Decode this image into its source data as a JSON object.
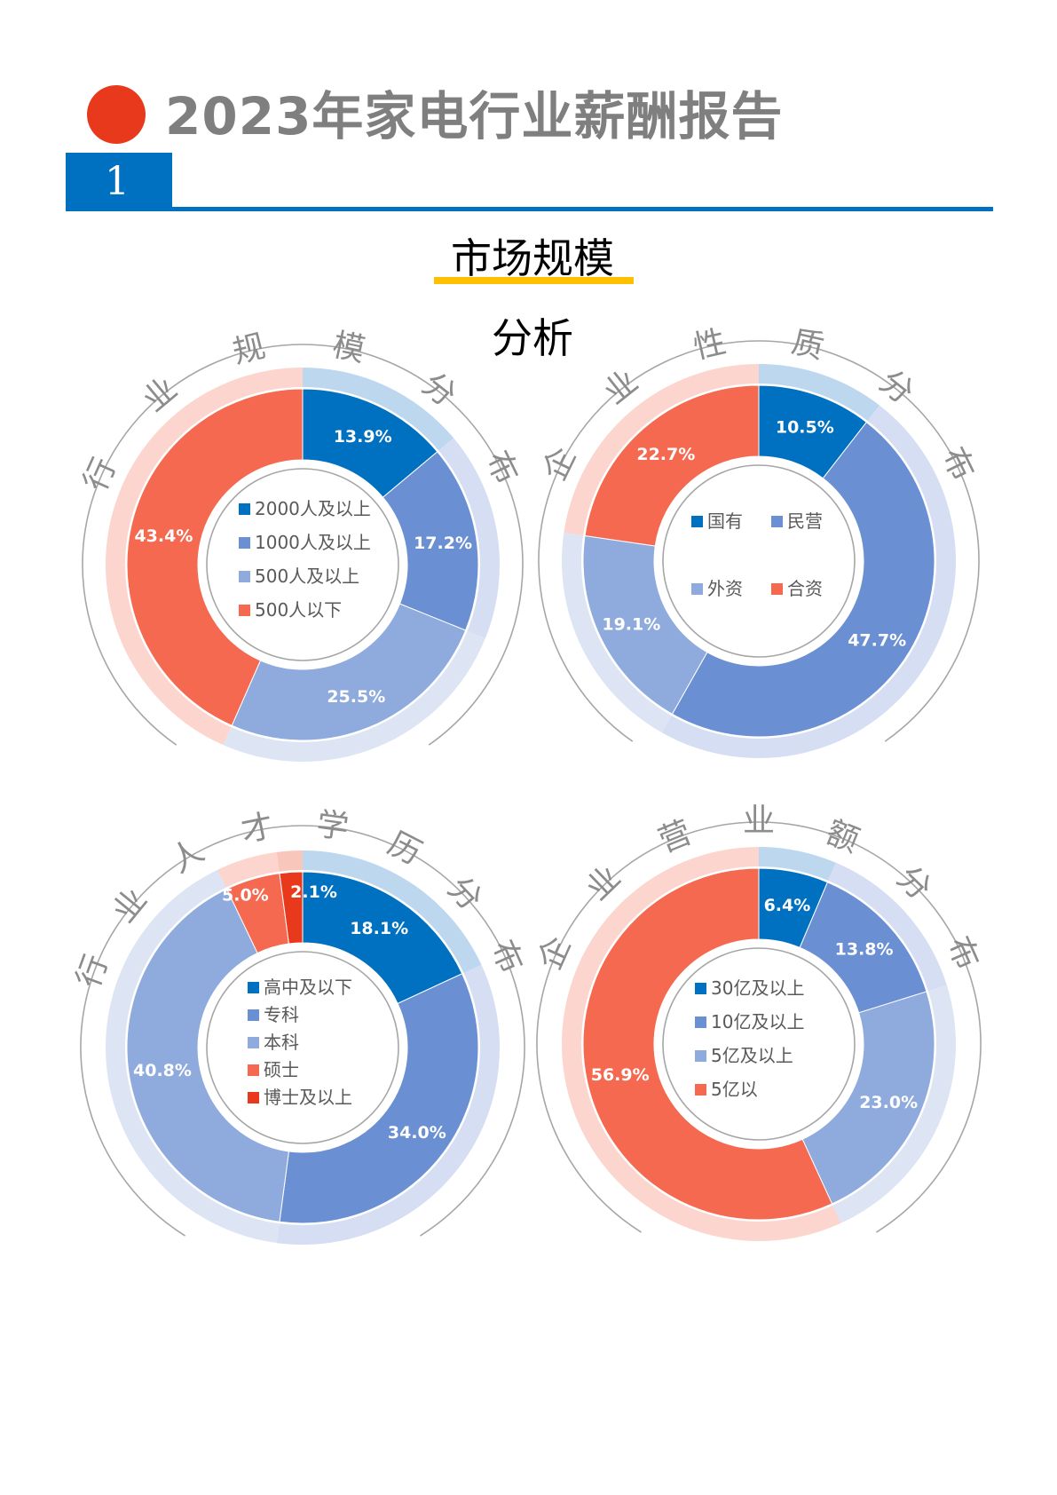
{
  "header": {
    "report_title": "2023年家电行业薪酬报告",
    "section_number": "1",
    "heading_line1": "市场规模",
    "heading_line2": "分析"
  },
  "colors": {
    "accent_red": "#e8391d",
    "brand_blue": "#0070c0",
    "underline_yellow": "#ffc000",
    "title_gray": "#7f7f7f"
  },
  "chart_data": [
    {
      "type": "pie",
      "title": "行业规模分布",
      "categories": [
        "2000人及以上",
        "1000人及以上",
        "500人及以上",
        "500人以下"
      ],
      "values": [
        13.9,
        17.2,
        25.5,
        43.4
      ],
      "value_labels": [
        "13.9%",
        "17.2%",
        "25.5%",
        "43.4%"
      ],
      "colors": [
        "#0070c0",
        "#6b8fd3",
        "#8faadc",
        "#f4694f"
      ],
      "legend_layout": "vertical",
      "legend": "center"
    },
    {
      "type": "pie",
      "title": "企业性质分布",
      "categories": [
        "国有",
        "民营",
        "外资",
        "合资"
      ],
      "values": [
        10.5,
        47.7,
        19.1,
        22.7
      ],
      "value_labels": [
        "10.5%",
        "47.7%",
        "19.1%",
        "22.7%"
      ],
      "colors": [
        "#0070c0",
        "#6b8fd3",
        "#8faadc",
        "#f4694f"
      ],
      "legend_layout": "grid",
      "legend": "center"
    },
    {
      "type": "pie",
      "title": "行业人才学历分布",
      "categories": [
        "高中及以下",
        "专科",
        "本科",
        "硕士",
        "博士及以上"
      ],
      "values": [
        18.1,
        34.0,
        40.8,
        5.0,
        2.1
      ],
      "value_labels": [
        "18.1%",
        "34.0%",
        "40.8%",
        "5.0%",
        "2.1%"
      ],
      "colors": [
        "#0070c0",
        "#6b8fd3",
        "#8faadc",
        "#f4694f",
        "#e8391d"
      ],
      "legend_layout": "vertical",
      "legend": "center"
    },
    {
      "type": "pie",
      "title": "企业营业额分布",
      "categories": [
        "30亿及以上",
        "10亿及以上",
        "5亿及以上",
        "5亿以"
      ],
      "values": [
        6.4,
        13.8,
        23.0,
        56.9
      ],
      "value_labels": [
        "6.4%",
        "13.8%",
        "23.0%",
        "56.9%"
      ],
      "colors": [
        "#0070c0",
        "#6b8fd3",
        "#8faadc",
        "#f4694f"
      ],
      "legend_layout": "vertical",
      "legend": "center"
    }
  ]
}
